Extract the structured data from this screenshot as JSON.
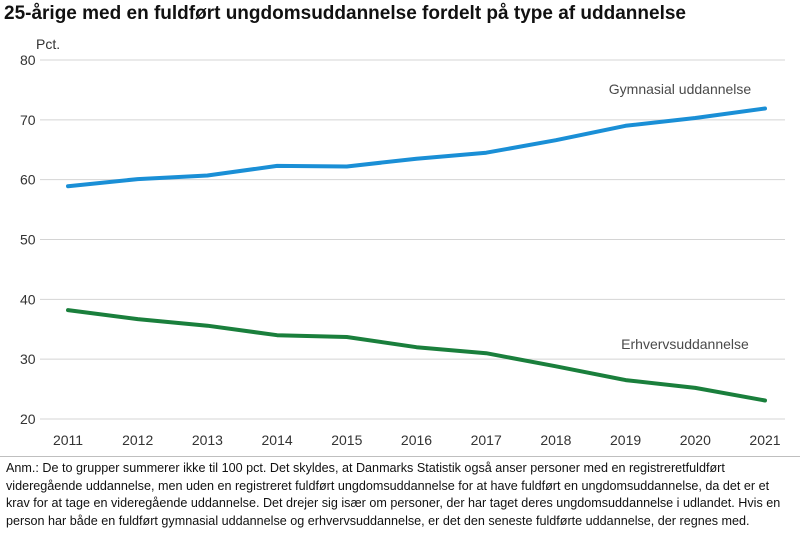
{
  "title": "25-årige med en fuldført ungdomsuddannelse fordelt på type af uddannelse",
  "chart_data": {
    "type": "line",
    "x": [
      "2011",
      "2012",
      "2013",
      "2014",
      "2015",
      "2016",
      "2017",
      "2018",
      "2019",
      "2020",
      "2021"
    ],
    "ylabel": "Pct.",
    "ylim": [
      20,
      80
    ],
    "yticks": [
      20,
      30,
      40,
      50,
      60,
      70,
      80
    ],
    "grid": true,
    "series": [
      {
        "name": "Gymnasial uddannelse",
        "color": "#1a8fd6",
        "values": [
          58.9,
          60.1,
          60.7,
          62.3,
          62.2,
          63.5,
          64.5,
          66.6,
          69.0,
          70.3,
          71.9
        ]
      },
      {
        "name": "Erhvervsuddannelse",
        "color": "#1a7f3c",
        "values": [
          38.2,
          36.7,
          35.6,
          34.0,
          33.7,
          32.0,
          31.0,
          28.8,
          26.5,
          25.2,
          23.1
        ]
      }
    ]
  },
  "note": "Anm.: De to grupper summerer ikke til 100 pct. Det skyldes, at Danmarks Statistik også anser personer med en registreretfuldført videregående uddannelse, men uden en registreret fuldført ungdomsuddannelse for at have fuldført en ungdomsuddannelse, da det er et krav for at tage en videregående uddannelse. Det drejer sig især om personer, der har taget deres ungdomsuddannelse i udlandet. Hvis en person har både en fuldført gymnasial uddannelse og erhvervsuddannelse, er det den seneste fuldførte uddannelse, der regnes med."
}
